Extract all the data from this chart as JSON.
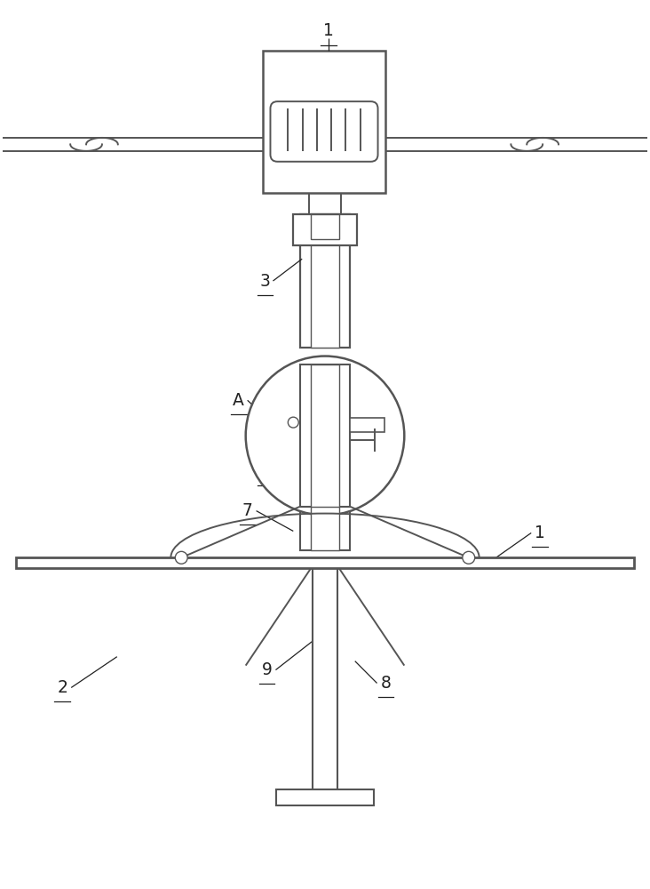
{
  "bg_color": "#ffffff",
  "line_color": "#555555",
  "lw": 1.4,
  "fig_width": 7.32,
  "fig_height": 10.0
}
